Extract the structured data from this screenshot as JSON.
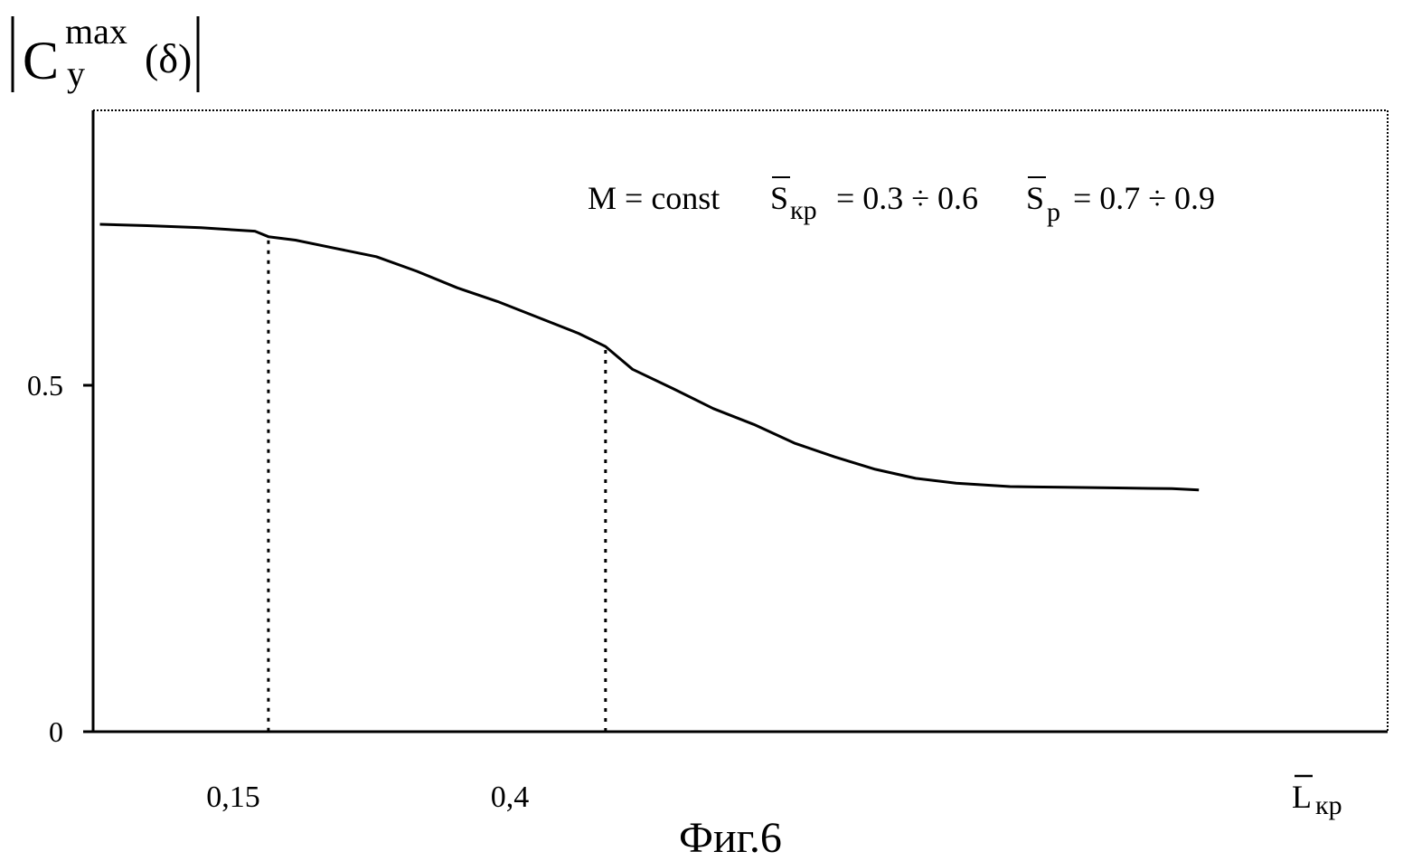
{
  "chart_data": {
    "type": "line",
    "title": "",
    "caption": "Фиг.6",
    "ylabel": {
      "main": "C",
      "sup": "max",
      "sub": "y",
      "arg": "(δ)"
    },
    "xlabel": {
      "main": "L",
      "sub": "кр"
    },
    "annotation": {
      "part1": "M = const",
      "s_kr_main": "S",
      "s_kr_sub": "кр",
      "s_kr_value": " = 0.3 ÷ 0.6",
      "s_p_main": "S",
      "s_p_sub": "р",
      "s_p_value": " = 0.7 ÷ 0.9"
    },
    "xlim": [
      0.02,
      0.98
    ],
    "ylim": [
      0,
      0.9
    ],
    "y_ticks": [
      {
        "value": 0,
        "label": "0"
      },
      {
        "value": 0.5,
        "label": "0.5"
      }
    ],
    "x_ticks": [
      {
        "value": 0.15,
        "label": "0,15"
      },
      {
        "value": 0.4,
        "label": "0,4"
      }
    ],
    "reference_lines": [
      0.15,
      0.4
    ],
    "grid": false,
    "legend": "none",
    "colors": {
      "line": "#000000",
      "axes": "#000000"
    },
    "series": [
      {
        "x": [
          0.025,
          0.06,
          0.1,
          0.14,
          0.15,
          0.17,
          0.2,
          0.23,
          0.26,
          0.29,
          0.32,
          0.35,
          0.38,
          0.4,
          0.42,
          0.45,
          0.48,
          0.51,
          0.54,
          0.57,
          0.6,
          0.63,
          0.66,
          0.7,
          0.74,
          0.78,
          0.82,
          0.84
        ],
        "y": [
          0.735,
          0.733,
          0.73,
          0.725,
          0.717,
          0.712,
          0.7,
          0.688,
          0.667,
          0.643,
          0.623,
          0.6,
          0.577,
          0.558,
          0.525,
          0.497,
          0.468,
          0.445,
          0.418,
          0.398,
          0.38,
          0.367,
          0.36,
          0.355,
          0.354,
          0.353,
          0.352,
          0.35
        ]
      }
    ]
  }
}
